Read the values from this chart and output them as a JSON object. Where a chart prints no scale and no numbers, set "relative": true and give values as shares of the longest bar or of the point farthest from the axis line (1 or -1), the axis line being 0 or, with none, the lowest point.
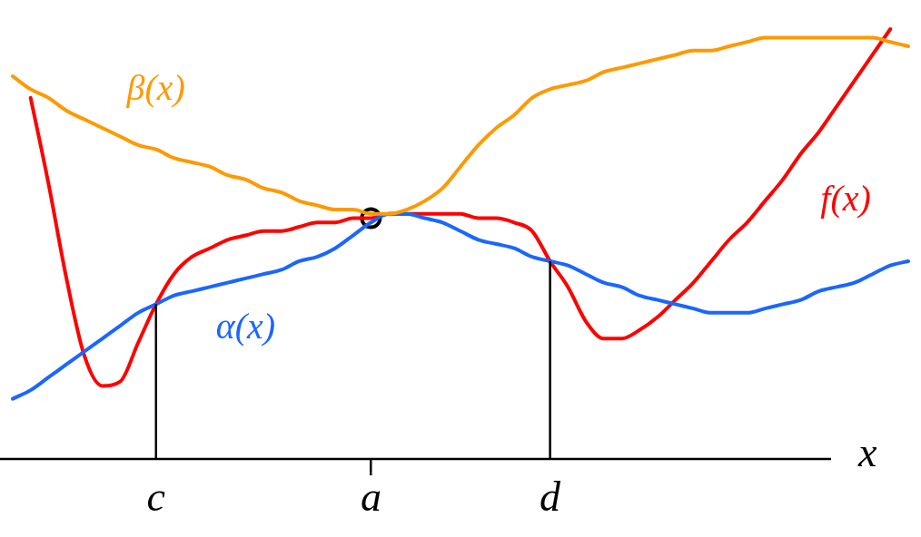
{
  "chart_data": {
    "type": "line",
    "relative": true,
    "xlabel": "x",
    "tick_labels": "x",
    "legend": false,
    "grid": false,
    "marker": "none",
    "line_style": "solid",
    "categories": [
      null,
      null,
      null,
      null,
      null,
      null,
      null,
      null,
      "c",
      null,
      null,
      null,
      null,
      null,
      null,
      null,
      null,
      null,
      null,
      null,
      "a",
      null,
      null,
      null,
      null,
      null,
      null,
      null,
      null,
      null,
      "d",
      null,
      null,
      null,
      null,
      null,
      null,
      null,
      null,
      null,
      null,
      null,
      null,
      null,
      null,
      null,
      null,
      null,
      null,
      null,
      null
    ],
    "series": [
      {
        "name": "β(x)",
        "color": "#ff9900",
        "values": [
          0.89,
          0.86,
          0.84,
          0.81,
          0.79,
          0.77,
          0.75,
          0.73,
          0.72,
          0.7,
          0.69,
          0.68,
          0.66,
          0.65,
          0.63,
          0.62,
          0.6,
          0.59,
          0.58,
          0.58,
          0.57,
          0.57,
          0.58,
          0.6,
          0.63,
          0.68,
          0.73,
          0.77,
          0.8,
          0.84,
          0.86,
          0.87,
          0.88,
          0.9,
          0.91,
          0.92,
          0.93,
          0.94,
          0.95,
          0.95,
          0.96,
          0.97,
          0.98,
          0.98,
          0.98,
          0.98,
          0.98,
          0.98,
          0.98,
          0.97,
          0.96
        ]
      },
      {
        "name": "α(x)",
        "color": "#1a66ff",
        "values": [
          0.14,
          0.16,
          0.19,
          0.22,
          0.25,
          0.28,
          0.31,
          0.34,
          0.36,
          0.38,
          0.39,
          0.4,
          0.41,
          0.42,
          0.43,
          0.44,
          0.46,
          0.47,
          0.49,
          0.52,
          0.55,
          0.57,
          0.57,
          0.56,
          0.55,
          0.53,
          0.51,
          0.5,
          0.49,
          0.47,
          0.46,
          0.45,
          0.43,
          0.41,
          0.4,
          0.38,
          0.37,
          0.36,
          0.35,
          0.34,
          0.34,
          0.34,
          0.35,
          0.36,
          0.37,
          0.39,
          0.4,
          0.41,
          0.43,
          0.45,
          0.46
        ]
      },
      {
        "name": "f(x)",
        "color": "#ff0000",
        "values": [
          null,
          0.84,
          0.64,
          0.42,
          0.24,
          0.17,
          0.18,
          0.27,
          0.36,
          0.43,
          0.47,
          0.49,
          0.51,
          0.52,
          0.53,
          0.53,
          0.54,
          0.55,
          0.55,
          0.56,
          0.56,
          0.57,
          0.57,
          0.57,
          0.57,
          0.57,
          0.56,
          0.56,
          0.55,
          0.53,
          0.46,
          0.4,
          0.32,
          0.28,
          0.28,
          0.3,
          0.33,
          0.37,
          0.41,
          0.46,
          0.51,
          0.55,
          0.6,
          0.65,
          0.71,
          0.76,
          0.82,
          0.88,
          0.94,
          1,
          null
        ]
      },
      {
        "type": "scatter",
        "color": "#000000",
        "marker": "circle",
        "x": [
          "a"
        ],
        "values": [
          0.56
        ]
      }
    ],
    "ref_lines": [
      {
        "axis": "x",
        "value": "c",
        "color": "#000000"
      },
      {
        "axis": "x",
        "value": "d",
        "color": "#000000"
      }
    ]
  }
}
